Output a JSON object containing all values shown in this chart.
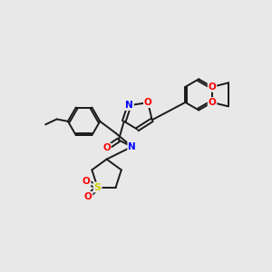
{
  "background_color": "#e8e8e8",
  "bond_color": "#1a1a1a",
  "atom_colors": {
    "N": "#0000ff",
    "O": "#ff0000",
    "S": "#cccc00",
    "C": "#1a1a1a"
  },
  "figsize": [
    3.0,
    3.0
  ],
  "dpi": 100,
  "lw": 1.4,
  "fontsize": 7.5
}
